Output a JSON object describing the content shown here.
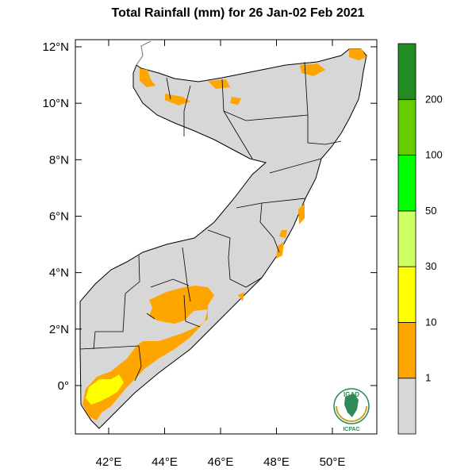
{
  "title": "Total Rainfall (mm) for 26 Jan-02 Feb 2021",
  "axes": {
    "lat_ticks": [
      "12°N",
      "10°N",
      "8°N",
      "6°N",
      "4°N",
      "2°N",
      "0°"
    ],
    "lon_ticks": [
      "42°E",
      "44°E",
      "46°E",
      "48°E",
      "50°E"
    ]
  },
  "colorbar": {
    "labels": [
      "1",
      "10",
      "30",
      "50",
      "100",
      "200"
    ],
    "colors": [
      "#d7d7d7",
      "#ffa500",
      "#ffff00",
      "#ccff66",
      "#00ff00",
      "#66cc00",
      "#228b22"
    ]
  },
  "logo": {
    "top_text": "IGAD",
    "bottom_text": "ICPAC"
  },
  "colors": {
    "land": "#d7d7d7",
    "rain_1_10": "#ffa500",
    "rain_10_30": "#ffff00"
  }
}
